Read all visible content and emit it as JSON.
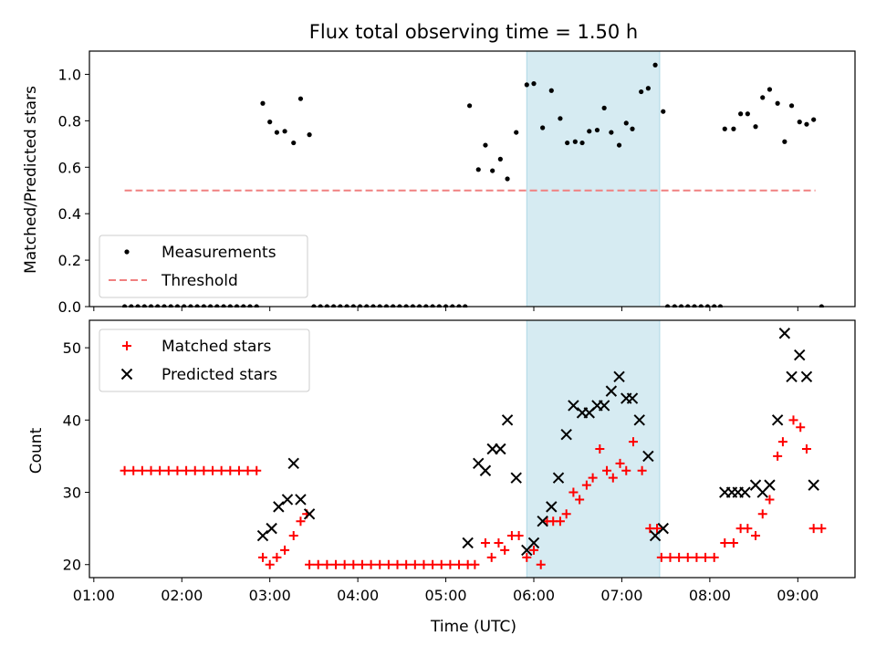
{
  "chart_data": [
    {
      "type": "scatter",
      "title": "Flux total observing time = 1.50 h",
      "xlabel": "",
      "ylabel": "Matched/Predicted stars",
      "xlim_hours": [
        0.95,
        9.65
      ],
      "ylim": [
        0,
        1.1
      ],
      "yticks": [
        "0.0",
        "0.2",
        "0.4",
        "0.6",
        "0.8",
        "1.0"
      ],
      "legend": {
        "placement": "lower-left",
        "entries": [
          "Measurements",
          "Threshold"
        ]
      },
      "highlight_span_hours": [
        5.92,
        7.43
      ],
      "threshold": {
        "name": "Threshold",
        "value": 0.5,
        "x_hours": [
          1.35,
          9.2
        ],
        "color": "#f08080"
      },
      "series": [
        {
          "name": "Measurements",
          "marker": "dot",
          "color": "#000000",
          "points": [
            [
              1.35,
              0
            ],
            [
              1.425,
              0
            ],
            [
              1.5,
              0
            ],
            [
              1.575,
              0
            ],
            [
              1.65,
              0
            ],
            [
              1.725,
              0
            ],
            [
              1.8,
              0
            ],
            [
              1.875,
              0
            ],
            [
              1.95,
              0
            ],
            [
              2.025,
              0
            ],
            [
              2.1,
              0
            ],
            [
              2.175,
              0
            ],
            [
              2.25,
              0
            ],
            [
              2.325,
              0
            ],
            [
              2.4,
              0
            ],
            [
              2.475,
              0
            ],
            [
              2.55,
              0
            ],
            [
              2.625,
              0
            ],
            [
              2.7,
              0
            ],
            [
              2.775,
              0
            ],
            [
              2.85,
              0
            ],
            [
              2.92,
              0.875
            ],
            [
              3.0,
              0.795
            ],
            [
              3.08,
              0.75
            ],
            [
              3.17,
              0.755
            ],
            [
              3.27,
              0.705
            ],
            [
              3.35,
              0.895
            ],
            [
              3.45,
              0.74
            ],
            [
              3.5,
              0
            ],
            [
              3.575,
              0
            ],
            [
              3.65,
              0
            ],
            [
              3.725,
              0
            ],
            [
              3.8,
              0
            ],
            [
              3.875,
              0
            ],
            [
              3.95,
              0
            ],
            [
              4.025,
              0
            ],
            [
              4.1,
              0
            ],
            [
              4.175,
              0
            ],
            [
              4.25,
              0
            ],
            [
              4.325,
              0
            ],
            [
              4.4,
              0
            ],
            [
              4.475,
              0
            ],
            [
              4.55,
              0
            ],
            [
              4.625,
              0
            ],
            [
              4.7,
              0
            ],
            [
              4.775,
              0
            ],
            [
              4.85,
              0
            ],
            [
              4.925,
              0
            ],
            [
              5.0,
              0
            ],
            [
              5.075,
              0
            ],
            [
              5.15,
              0
            ],
            [
              5.22,
              0
            ],
            [
              5.27,
              0.865
            ],
            [
              5.37,
              0.59
            ],
            [
              5.45,
              0.695
            ],
            [
              5.53,
              0.585
            ],
            [
              5.62,
              0.635
            ],
            [
              5.7,
              0.55
            ],
            [
              5.8,
              0.75
            ],
            [
              5.92,
              0.955
            ],
            [
              6.0,
              0.96
            ],
            [
              6.1,
              0.77
            ],
            [
              6.2,
              0.93
            ],
            [
              6.3,
              0.81
            ],
            [
              6.38,
              0.705
            ],
            [
              6.47,
              0.71
            ],
            [
              6.55,
              0.705
            ],
            [
              6.63,
              0.755
            ],
            [
              6.72,
              0.76
            ],
            [
              6.8,
              0.855
            ],
            [
              6.88,
              0.75
            ],
            [
              6.97,
              0.695
            ],
            [
              7.05,
              0.79
            ],
            [
              7.12,
              0.765
            ],
            [
              7.22,
              0.925
            ],
            [
              7.3,
              0.94
            ],
            [
              7.38,
              1.04
            ],
            [
              7.47,
              0.84
            ],
            [
              7.52,
              0
            ],
            [
              7.6,
              0
            ],
            [
              7.675,
              0
            ],
            [
              7.75,
              0
            ],
            [
              7.825,
              0
            ],
            [
              7.9,
              0
            ],
            [
              7.975,
              0
            ],
            [
              8.05,
              0
            ],
            [
              8.12,
              0
            ],
            [
              8.17,
              0.765
            ],
            [
              8.27,
              0.765
            ],
            [
              8.35,
              0.83
            ],
            [
              8.43,
              0.83
            ],
            [
              8.52,
              0.775
            ],
            [
              8.6,
              0.9
            ],
            [
              8.68,
              0.935
            ],
            [
              8.77,
              0.875
            ],
            [
              8.85,
              0.71
            ],
            [
              8.93,
              0.865
            ],
            [
              9.02,
              0.795
            ],
            [
              9.1,
              0.785
            ],
            [
              9.18,
              0.805
            ],
            [
              9.27,
              0
            ]
          ]
        }
      ]
    },
    {
      "type": "scatter",
      "title": "",
      "xlabel": "Time (UTC)",
      "ylabel": "Count",
      "xlim_hours": [
        0.95,
        9.65
      ],
      "ylim": [
        18.2,
        53.8
      ],
      "yticks": [
        "20",
        "30",
        "40",
        "50"
      ],
      "xticks": [
        "01:00",
        "02:00",
        "03:00",
        "04:00",
        "05:00",
        "06:00",
        "07:00",
        "08:00",
        "09:00"
      ],
      "legend": {
        "placement": "top-left",
        "entries": [
          "Matched stars",
          "Predicted stars"
        ]
      },
      "highlight_span_hours": [
        5.92,
        7.43
      ],
      "series": [
        {
          "name": "Matched stars",
          "marker": "plus",
          "color": "#ff0000",
          "points": [
            [
              1.35,
              33
            ],
            [
              1.45,
              33
            ],
            [
              1.55,
              33
            ],
            [
              1.65,
              33
            ],
            [
              1.75,
              33
            ],
            [
              1.85,
              33
            ],
            [
              1.95,
              33
            ],
            [
              2.05,
              33
            ],
            [
              2.15,
              33
            ],
            [
              2.25,
              33
            ],
            [
              2.35,
              33
            ],
            [
              2.45,
              33
            ],
            [
              2.55,
              33
            ],
            [
              2.65,
              33
            ],
            [
              2.75,
              33
            ],
            [
              2.85,
              33
            ],
            [
              2.92,
              21
            ],
            [
              3.0,
              20
            ],
            [
              3.08,
              21
            ],
            [
              3.17,
              22
            ],
            [
              3.27,
              24
            ],
            [
              3.35,
              26
            ],
            [
              3.42,
              27
            ],
            [
              3.45,
              20
            ],
            [
              3.55,
              20
            ],
            [
              3.65,
              20
            ],
            [
              3.75,
              20
            ],
            [
              3.85,
              20
            ],
            [
              3.95,
              20
            ],
            [
              4.05,
              20
            ],
            [
              4.15,
              20
            ],
            [
              4.25,
              20
            ],
            [
              4.35,
              20
            ],
            [
              4.45,
              20
            ],
            [
              4.55,
              20
            ],
            [
              4.65,
              20
            ],
            [
              4.75,
              20
            ],
            [
              4.85,
              20
            ],
            [
              4.95,
              20
            ],
            [
              5.05,
              20
            ],
            [
              5.15,
              20
            ],
            [
              5.25,
              20
            ],
            [
              5.33,
              20
            ],
            [
              5.45,
              23
            ],
            [
              5.52,
              21
            ],
            [
              5.6,
              23
            ],
            [
              5.67,
              22
            ],
            [
              5.75,
              24
            ],
            [
              5.83,
              24
            ],
            [
              5.92,
              21
            ],
            [
              6.0,
              22
            ],
            [
              6.08,
              20
            ],
            [
              6.15,
              26
            ],
            [
              6.22,
              26
            ],
            [
              6.3,
              26
            ],
            [
              6.37,
              27
            ],
            [
              6.45,
              30
            ],
            [
              6.52,
              29
            ],
            [
              6.6,
              31
            ],
            [
              6.67,
              32
            ],
            [
              6.75,
              36
            ],
            [
              6.83,
              33
            ],
            [
              6.9,
              32
            ],
            [
              6.98,
              34
            ],
            [
              7.05,
              33
            ],
            [
              7.13,
              37
            ],
            [
              7.23,
              33
            ],
            [
              7.32,
              25
            ],
            [
              7.4,
              25
            ],
            [
              7.45,
              21
            ],
            [
              7.55,
              21
            ],
            [
              7.65,
              21
            ],
            [
              7.75,
              21
            ],
            [
              7.85,
              21
            ],
            [
              7.95,
              21
            ],
            [
              8.05,
              21
            ],
            [
              8.17,
              23
            ],
            [
              8.27,
              23
            ],
            [
              8.35,
              25
            ],
            [
              8.43,
              25
            ],
            [
              8.52,
              24
            ],
            [
              8.6,
              27
            ],
            [
              8.68,
              29
            ],
            [
              8.77,
              35
            ],
            [
              8.83,
              37
            ],
            [
              8.95,
              40
            ],
            [
              9.03,
              39
            ],
            [
              9.1,
              36
            ],
            [
              9.18,
              25
            ],
            [
              9.27,
              25
            ]
          ]
        },
        {
          "name": "Predicted stars",
          "marker": "x",
          "color": "#000000",
          "points": [
            [
              2.92,
              24
            ],
            [
              3.02,
              25
            ],
            [
              3.1,
              28
            ],
            [
              3.2,
              29
            ],
            [
              3.27,
              34
            ],
            [
              3.35,
              29
            ],
            [
              3.45,
              27
            ],
            [
              5.25,
              23
            ],
            [
              5.37,
              34
            ],
            [
              5.45,
              33
            ],
            [
              5.53,
              36
            ],
            [
              5.62,
              36
            ],
            [
              5.7,
              40
            ],
            [
              5.8,
              32
            ],
            [
              5.92,
              22
            ],
            [
              6.0,
              23
            ],
            [
              6.1,
              26
            ],
            [
              6.2,
              28
            ],
            [
              6.28,
              32
            ],
            [
              6.37,
              38
            ],
            [
              6.45,
              42
            ],
            [
              6.55,
              41
            ],
            [
              6.63,
              41
            ],
            [
              6.72,
              42
            ],
            [
              6.8,
              42
            ],
            [
              6.88,
              44
            ],
            [
              6.97,
              46
            ],
            [
              7.05,
              43
            ],
            [
              7.12,
              43
            ],
            [
              7.2,
              40
            ],
            [
              7.3,
              35
            ],
            [
              7.38,
              24
            ],
            [
              7.47,
              25
            ],
            [
              8.17,
              30
            ],
            [
              8.25,
              30
            ],
            [
              8.32,
              30
            ],
            [
              8.4,
              30
            ],
            [
              8.52,
              31
            ],
            [
              8.6,
              30
            ],
            [
              8.68,
              31
            ],
            [
              8.77,
              40
            ],
            [
              8.85,
              52
            ],
            [
              8.93,
              46
            ],
            [
              9.02,
              49
            ],
            [
              9.1,
              46
            ],
            [
              9.18,
              31
            ]
          ]
        }
      ]
    }
  ]
}
